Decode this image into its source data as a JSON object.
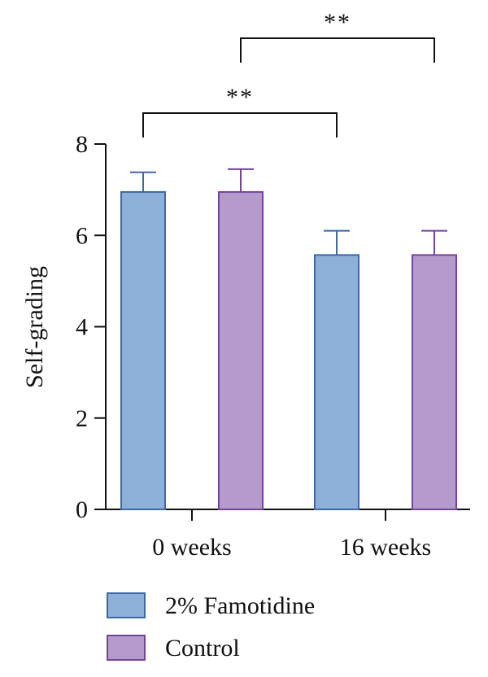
{
  "chart_data": {
    "type": "bar",
    "title": "",
    "xlabel": "",
    "ylabel": "Self-grading",
    "ylim": [
      0,
      8
    ],
    "yticks": [
      0,
      2,
      4,
      6,
      8
    ],
    "categories": [
      "0 weeks",
      "16 weeks"
    ],
    "series": [
      {
        "name": "2% Famotidine",
        "values": [
          6.95,
          5.57
        ],
        "errors": [
          0.43,
          0.53
        ],
        "color": "#8eafd8",
        "edge": "#3e68a7"
      },
      {
        "name": "Control",
        "values": [
          6.95,
          5.57
        ],
        "errors": [
          0.5,
          0.53
        ],
        "color": "#b49bcb",
        "edge": "#74449d"
      }
    ],
    "significance": [
      {
        "label": "**",
        "from": {
          "category": 0,
          "series": 0
        },
        "to": {
          "category": 1,
          "series": 0
        }
      },
      {
        "label": "**",
        "from": {
          "category": 0,
          "series": 1
        },
        "to": {
          "category": 1,
          "series": 1
        }
      }
    ],
    "legend_position": "bottom-left",
    "grid": false
  }
}
